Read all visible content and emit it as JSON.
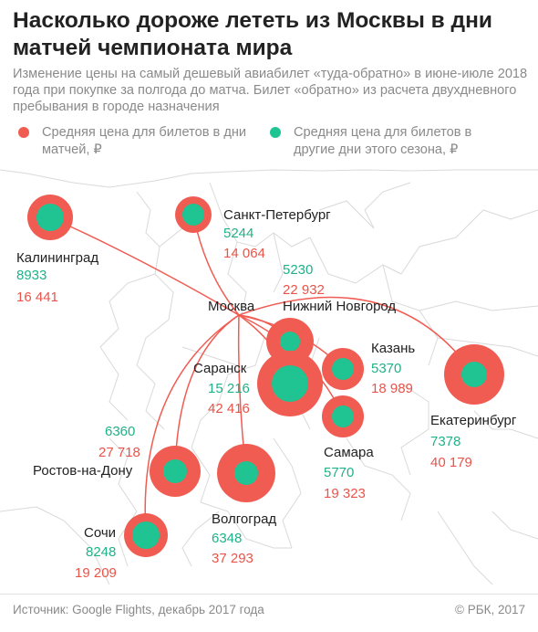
{
  "header": {
    "title": "Насколько дороже лететь из Москвы в дни матчей чемпионата мира",
    "subtitle": "Изменение цены на самый дешевый авиабилет «туда-обратно» в июне-июле 2018 года при покупке за полгода до матча. Билет «обратно» из расчета двухдневного пребывания в городе назначения"
  },
  "legend": [
    {
      "label": "Средняя цена для билетов в дни матчей, ₽",
      "color": "#f05c52"
    },
    {
      "label": "Средняя цена для билетов в другие дни этого сезона, ₽",
      "color": "#1fc492"
    }
  ],
  "colors": {
    "match": "#f05c52",
    "other": "#1fc492",
    "route": "#f05c52",
    "border": "#d2d2d2"
  },
  "origin": {
    "label": "Москва"
  },
  "cities": [
    {
      "name": "Калининград",
      "other": "8933",
      "match": "16 441"
    },
    {
      "name": "Санкт-Петербург",
      "other": "5244",
      "match": "14 064"
    },
    {
      "name": "Нижний Новгород",
      "other": "5230",
      "match": "22 932"
    },
    {
      "name": "Казань",
      "other": "5370",
      "match": "18 989"
    },
    {
      "name": "Саранск",
      "other": "15 216",
      "match": "42 416"
    },
    {
      "name": "Самара",
      "other": "5770",
      "match": "19 323"
    },
    {
      "name": "Екатеринбург",
      "other": "7378",
      "match": "40 179"
    },
    {
      "name": "Ростов-на-Дону",
      "other": "6360",
      "match": "27 718"
    },
    {
      "name": "Волгоград",
      "other": "6348",
      "match": "37 293"
    },
    {
      "name": "Сочи",
      "other": "8248",
      "match": "19 209"
    }
  ],
  "footer": {
    "source": "Источник: Google Flights, декабрь 2017 года",
    "copyright": "© РБК, 2017"
  }
}
